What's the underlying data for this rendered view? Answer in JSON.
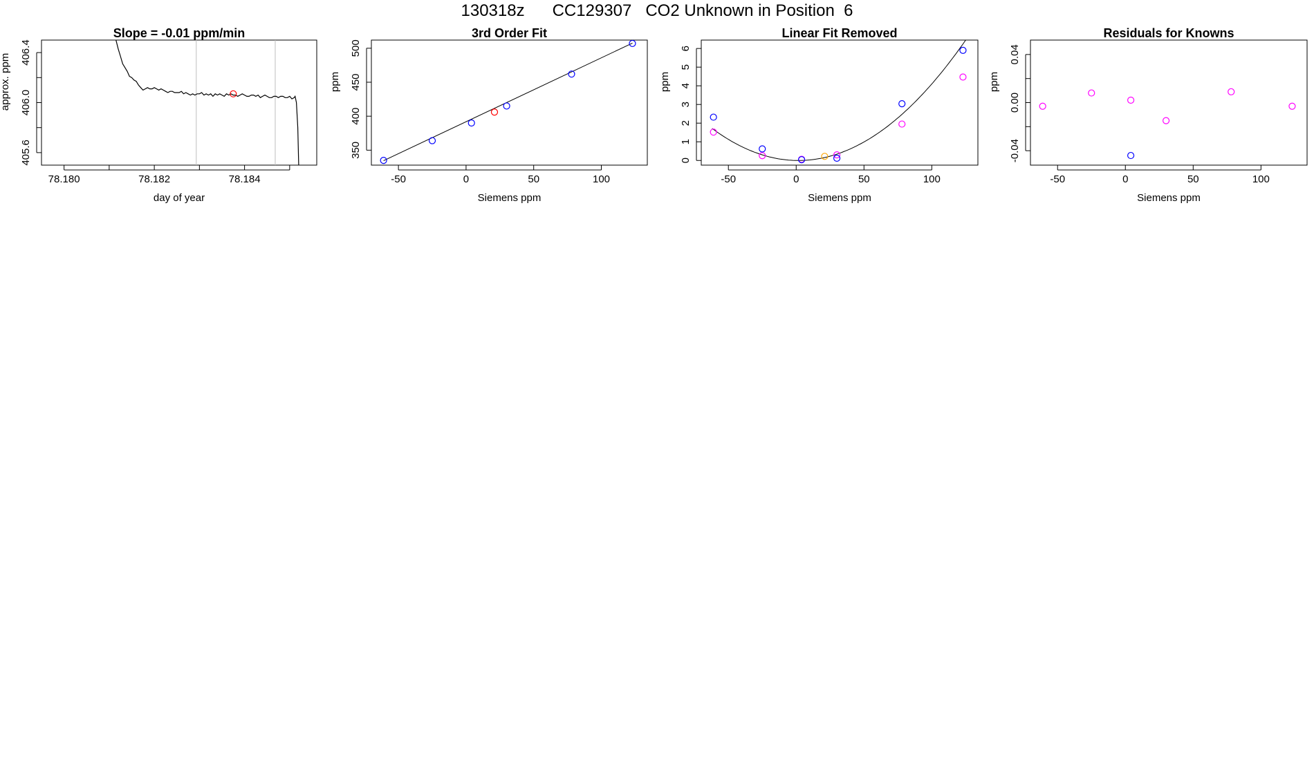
{
  "figure": {
    "title": "130318z      CC129307   CO2 Unknown in Position  6"
  },
  "colors": {
    "frame": "#000000",
    "trace": "#000000",
    "window_lines": "#bebebe",
    "known_points": "#0000ff",
    "unknown_point": "#ff0000",
    "linear_removed_points": "#ff00ff",
    "unknown_linear_removed": "#ffa500"
  },
  "chart_data": [
    {
      "type": "line",
      "title": "Slope =  -0.01  ppm/min",
      "xlabel": "day of year",
      "ylabel": "approx. ppm",
      "xlim": [
        78.1795,
        78.1856
      ],
      "ylim": [
        405.5,
        406.5
      ],
      "xticks": [
        78.18,
        78.181,
        78.182,
        78.183,
        78.184,
        78.185
      ],
      "xtick_labels": [
        "78.180",
        "",
        "78.182",
        "",
        "78.184",
        ""
      ],
      "yticks": [
        405.6,
        405.8,
        406.0,
        406.2,
        406.4
      ],
      "ytick_labels": [
        "405.6",
        "",
        "406.0",
        "",
        "406.4"
      ],
      "window_lines_x": [
        78.18293,
        78.18468
      ],
      "series": [
        {
          "x": [
            78.18115,
            78.1812,
            78.18125,
            78.1813,
            78.18135,
            78.1814,
            78.18145,
            78.1815,
            78.18155,
            78.1816,
            78.18165,
            78.1817,
            78.18175,
            78.1818,
            78.18185,
            78.1819,
            78.18195,
            78.182,
            78.18205,
            78.1821,
            78.18215,
            78.1822,
            78.18225,
            78.1823,
            78.18235,
            78.1824,
            78.18245,
            78.1825,
            78.18255,
            78.1826,
            78.18265,
            78.1827,
            78.18275,
            78.1828,
            78.18285,
            78.1829,
            78.18295,
            78.183,
            78.18305,
            78.1831,
            78.18315,
            78.1832,
            78.18325,
            78.1833,
            78.18335,
            78.1834,
            78.18345,
            78.1835,
            78.18355,
            78.1836,
            78.18365,
            78.1837,
            78.18375,
            78.1838,
            78.18385,
            78.1839,
            78.18395,
            78.184,
            78.18405,
            78.1841,
            78.18415,
            78.1842,
            78.18425,
            78.1843,
            78.18435,
            78.1844,
            78.18445,
            78.1845,
            78.18455,
            78.1846,
            78.18465,
            78.1847,
            78.18475,
            78.1848,
            78.18485,
            78.1849,
            78.18495,
            78.185,
            78.18505,
            78.1851,
            78.18512,
            78.18515,
            78.18518,
            78.1852
          ],
          "y": [
            406.5,
            406.43,
            406.37,
            406.31,
            406.28,
            406.25,
            406.21,
            406.2,
            406.18,
            406.17,
            406.14,
            406.12,
            406.1,
            406.11,
            406.12,
            406.11,
            406.11,
            406.12,
            406.11,
            406.1,
            406.11,
            406.1,
            406.09,
            406.08,
            406.09,
            406.09,
            406.08,
            406.08,
            406.08,
            406.09,
            406.07,
            406.08,
            406.07,
            406.06,
            406.07,
            406.06,
            406.07,
            406.07,
            406.08,
            406.06,
            406.07,
            406.06,
            406.07,
            406.05,
            406.07,
            406.06,
            406.07,
            406.06,
            406.05,
            406.07,
            406.06,
            406.07,
            406.06,
            406.06,
            406.05,
            406.06,
            406.07,
            406.06,
            406.05,
            406.05,
            406.06,
            406.06,
            406.05,
            406.06,
            406.04,
            406.05,
            406.06,
            406.05,
            406.04,
            406.04,
            406.05,
            406.05,
            406.04,
            406.05,
            406.05,
            406.04,
            406.04,
            406.05,
            406.03,
            406.04,
            406.05,
            406.0,
            405.8,
            405.5
          ]
        }
      ],
      "points": [
        {
          "x": 78.18375,
          "y": 406.07,
          "role": "unknown"
        }
      ]
    },
    {
      "type": "scatter",
      "title": "3rd Order Fit",
      "xlabel": "Siemens ppm",
      "ylabel": "ppm",
      "xlim": [
        -70,
        134
      ],
      "ylim": [
        328,
        512
      ],
      "xticks": [
        -50,
        0,
        50,
        100
      ],
      "xtick_labels": [
        "-50",
        "0",
        "50",
        "100"
      ],
      "yticks": [
        350,
        400,
        450,
        500
      ],
      "ytick_labels": [
        "350",
        "400",
        "450",
        "500"
      ],
      "known_points": {
        "x": [
          -61,
          -25,
          4,
          30,
          78,
          123
        ],
        "y": [
          335,
          364,
          390,
          415,
          462,
          507
        ]
      },
      "unknown_point": {
        "x": 21,
        "y": 406
      },
      "fit_line": {
        "x": [
          -61,
          123
        ],
        "y": [
          334.5,
          507.5
        ]
      }
    },
    {
      "type": "scatter",
      "title": "Linear Fit Removed",
      "xlabel": "Siemens ppm",
      "ylabel": "ppm",
      "xlim": [
        -70,
        134
      ],
      "ylim": [
        -0.25,
        6.45
      ],
      "xticks": [
        -50,
        0,
        50,
        100
      ],
      "xtick_labels": [
        "-50",
        "0",
        "50",
        "100"
      ],
      "yticks": [
        0,
        1,
        2,
        3,
        4,
        5,
        6
      ],
      "ytick_labels": [
        "0",
        "1",
        "2",
        "3",
        "4",
        "5",
        "6"
      ],
      "known_points": {
        "x": [
          -61,
          -25,
          4,
          30,
          78,
          123
        ],
        "y": [
          2.32,
          0.62,
          0.04,
          0.12,
          3.04,
          5.9
        ]
      },
      "linear_removed_points": {
        "x": [
          -61,
          -25,
          4,
          30,
          78,
          123
        ],
        "y": [
          1.52,
          0.26,
          0.06,
          0.3,
          1.95,
          4.47
        ]
      },
      "unknown_point": {
        "x": 21,
        "y": 0.22
      },
      "fit_curve": {
        "a": 0.000424,
        "b": -0.0014,
        "c": 0.0,
        "x_range": [
          -62,
          126
        ]
      }
    },
    {
      "type": "scatter",
      "title": "Residuals for Knowns",
      "xlabel": "Siemens ppm",
      "ylabel": "ppm",
      "xlim": [
        -70,
        134
      ],
      "ylim": [
        -0.052,
        0.052
      ],
      "xticks": [
        -50,
        0,
        50,
        100
      ],
      "xtick_labels": [
        "-50",
        "0",
        "50",
        "100"
      ],
      "yticks": [
        -0.04,
        -0.02,
        0.0,
        0.02,
        0.04
      ],
      "ytick_labels": [
        "-0.04",
        "",
        "0.00",
        "",
        "0.04"
      ],
      "residual_points": {
        "x": [
          -61,
          -25,
          4,
          30,
          78,
          123
        ],
        "y": [
          -0.003,
          0.008,
          0.002,
          -0.015,
          0.009,
          -0.003
        ]
      },
      "blue_points": {
        "x": [
          4
        ],
        "y": [
          -0.044
        ]
      }
    }
  ]
}
